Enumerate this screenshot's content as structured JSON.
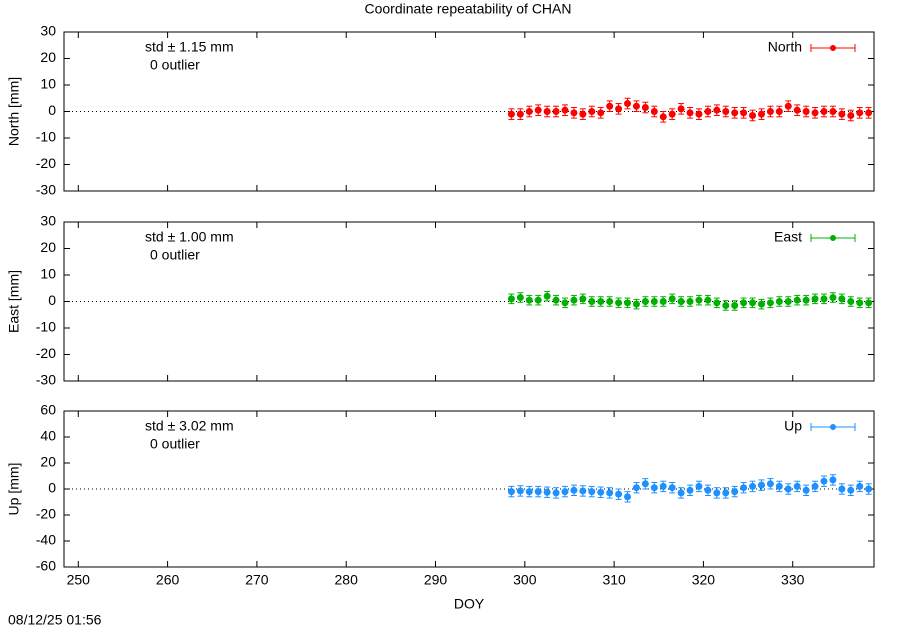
{
  "title": "Coordinate repeatability of CHAN",
  "timestamp": "08/12/25 01:56",
  "chart_data": [
    {
      "type": "scatter",
      "ylabel": "North [mm]",
      "annotations": [
        "std ± 1.15 mm",
        "0 outlier"
      ],
      "zero_line": true,
      "legend": "upper right",
      "xlim": [
        248.4,
        339.1
      ],
      "ylim": [
        -30,
        30
      ],
      "yticks": [
        30,
        20,
        10,
        0,
        -10,
        -20,
        -30
      ],
      "x": [
        298.5,
        299.5,
        300.5,
        301.5,
        302.5,
        303.5,
        304.5,
        305.5,
        306.5,
        307.5,
        308.5,
        309.5,
        310.5,
        311.5,
        312.5,
        313.5,
        314.5,
        315.5,
        316.5,
        317.5,
        318.5,
        319.5,
        320.5,
        321.5,
        322.5,
        323.5,
        324.5,
        325.5,
        326.5,
        327.5,
        328.5,
        329.5,
        330.5,
        331.5,
        332.5,
        333.5,
        334.5,
        335.5,
        336.5,
        337.5,
        338.5
      ],
      "series": [
        {
          "name": "North",
          "color": "#ff0000",
          "values": [
            -1,
            -1,
            0,
            0.5,
            0,
            0,
            0.5,
            -0.5,
            -1,
            0,
            -0.5,
            2,
            1,
            3,
            2,
            1.5,
            0,
            -2,
            -1,
            1,
            -0.5,
            -1,
            0,
            0.5,
            0,
            -0.5,
            -0.5,
            -1.5,
            -1,
            0,
            0,
            2,
            0.5,
            0,
            -0.5,
            0,
            0,
            -1,
            -1.5,
            -0.5,
            -0.5
          ],
          "errors": [
            2,
            2,
            2,
            2,
            2,
            2,
            2,
            2,
            2,
            2,
            2,
            2,
            2,
            2,
            2,
            2,
            2,
            2,
            2,
            2,
            2,
            2,
            2,
            2,
            2,
            2,
            2,
            2,
            2,
            2,
            2,
            2,
            2,
            2,
            2,
            2,
            2,
            2,
            2,
            2,
            2
          ]
        }
      ]
    },
    {
      "type": "scatter",
      "ylabel": "East [mm]",
      "annotations": [
        "std ± 1.00 mm",
        "0 outlier"
      ],
      "zero_line": true,
      "legend": "upper right",
      "xlim": [
        248.4,
        339.1
      ],
      "ylim": [
        -30,
        30
      ],
      "yticks": [
        30,
        20,
        10,
        0,
        -10,
        -20,
        -30
      ],
      "x": [
        298.5,
        299.5,
        300.5,
        301.5,
        302.5,
        303.5,
        304.5,
        305.5,
        306.5,
        307.5,
        308.5,
        309.5,
        310.5,
        311.5,
        312.5,
        313.5,
        314.5,
        315.5,
        316.5,
        317.5,
        318.5,
        319.5,
        320.5,
        321.5,
        322.5,
        323.5,
        324.5,
        325.5,
        326.5,
        327.5,
        328.5,
        329.5,
        330.5,
        331.5,
        332.5,
        333.5,
        334.5,
        335.5,
        336.5,
        337.5,
        338.5
      ],
      "series": [
        {
          "name": "East",
          "color": "#00b000",
          "values": [
            1,
            1.5,
            0.5,
            0.5,
            2,
            0.5,
            -0.5,
            0.5,
            1,
            0,
            0,
            0,
            -0.5,
            -0.5,
            -1,
            0,
            0,
            0,
            1,
            0,
            0,
            0.5,
            0.5,
            -0.5,
            -1.5,
            -1.5,
            -0.5,
            -0.5,
            -1,
            -0.5,
            0,
            0,
            0.5,
            0.5,
            1,
            1,
            1.5,
            1,
            0,
            -0.5,
            -0.5
          ],
          "errors": [
            1.8,
            1.8,
            1.8,
            1.8,
            1.8,
            1.8,
            1.8,
            1.8,
            1.8,
            1.8,
            1.8,
            1.8,
            1.8,
            1.8,
            1.8,
            1.8,
            1.8,
            1.8,
            1.8,
            1.8,
            1.8,
            1.8,
            1.8,
            1.8,
            1.8,
            1.8,
            1.8,
            1.8,
            1.8,
            1.8,
            1.8,
            1.8,
            1.8,
            1.8,
            1.8,
            1.8,
            1.8,
            1.8,
            1.8,
            1.8,
            1.8
          ]
        }
      ]
    },
    {
      "type": "scatter",
      "ylabel": "Up [mm]",
      "xlabel": "DOY",
      "annotations": [
        "std ± 3.02 mm",
        "0 outlier"
      ],
      "zero_line": true,
      "legend": "upper right",
      "xlim": [
        248.4,
        339.1
      ],
      "ylim": [
        -60,
        60
      ],
      "yticks": [
        60,
        40,
        20,
        0,
        -20,
        -40,
        -60
      ],
      "xticks": [
        250,
        260,
        270,
        280,
        290,
        300,
        310,
        320,
        330
      ],
      "x": [
        298.5,
        299.5,
        300.5,
        301.5,
        302.5,
        303.5,
        304.5,
        305.5,
        306.5,
        307.5,
        308.5,
        309.5,
        310.5,
        311.5,
        312.5,
        313.5,
        314.5,
        315.5,
        316.5,
        317.5,
        318.5,
        319.5,
        320.5,
        321.5,
        322.5,
        323.5,
        324.5,
        325.5,
        326.5,
        327.5,
        328.5,
        329.5,
        330.5,
        331.5,
        332.5,
        333.5,
        334.5,
        335.5,
        336.5,
        337.5,
        338.5
      ],
      "series": [
        {
          "name": "Up",
          "color": "#1e90ff",
          "values": [
            -2,
            -1.5,
            -2,
            -2,
            -2.5,
            -3,
            -2,
            -1,
            -1.5,
            -2,
            -2.5,
            -3,
            -4,
            -6,
            1,
            4,
            1,
            2,
            1,
            -3,
            -1,
            2,
            -1,
            -3,
            -3,
            -2,
            1,
            2,
            3,
            4,
            2,
            0,
            2,
            -1,
            2,
            6,
            7,
            0,
            -1,
            2,
            0
          ],
          "errors": [
            4,
            4,
            4,
            4,
            4,
            4,
            4,
            4,
            4,
            4,
            4,
            4,
            4,
            4,
            4,
            4,
            4,
            4,
            4,
            4,
            4,
            4,
            4,
            4,
            4,
            4,
            4,
            4,
            4,
            4,
            4,
            4,
            4,
            4,
            4,
            4,
            4,
            4,
            4,
            4,
            4
          ]
        }
      ]
    }
  ]
}
